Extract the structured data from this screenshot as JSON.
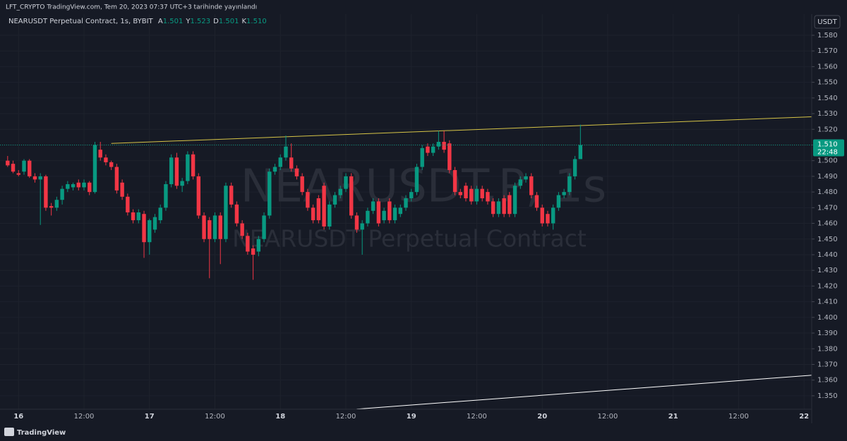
{
  "chart_data": {
    "type": "candlestick",
    "header": "LFT_CRYPTO TradingView.com, Tem 20, 2023 07:37 UTC+3 tarihinde yayınlandı",
    "symbol": "NEARUSDT Perpetual Contract, 1s, BYBIT",
    "ohlc_legend": [
      {
        "label": "A",
        "value": "1.501"
      },
      {
        "label": "Y",
        "value": "1.523"
      },
      {
        "label": "D",
        "value": "1.501"
      },
      {
        "label": "K",
        "value": "1.510"
      }
    ],
    "watermark": "NEARUSDT.P, 1s",
    "watermark_subtitle": "NEARUSDT Perpetual Contract",
    "currency": "USDT",
    "footer": "TradingView",
    "up_color": "#089981",
    "down_color": "#f23645",
    "grid": true,
    "x": [
      -2,
      -1,
      0,
      1,
      2,
      3,
      4,
      5,
      6,
      7,
      8,
      9,
      10,
      11,
      12,
      13,
      14,
      15,
      16,
      17,
      18,
      19,
      20,
      21,
      22,
      23,
      24,
      25,
      26,
      27,
      28,
      29,
      30,
      31,
      32,
      33,
      34,
      35,
      36,
      37,
      38,
      39,
      40,
      41,
      42,
      43,
      44,
      45,
      46,
      47,
      48,
      49,
      50,
      51,
      52,
      53,
      54,
      55,
      56,
      57,
      58,
      59,
      60,
      61,
      62,
      63,
      64,
      65,
      66,
      67,
      68,
      69,
      70,
      71,
      72,
      73,
      74,
      75,
      76,
      77,
      78,
      79,
      80,
      81,
      82,
      83,
      84,
      85,
      86,
      87,
      88,
      89,
      90,
      91,
      92,
      93,
      94,
      95,
      96,
      97,
      98,
      99,
      100,
      101,
      102,
      103
    ],
    "ohlc": [
      [
        1.5,
        1.503,
        1.496,
        1.497
      ],
      [
        1.498,
        1.5,
        1.492,
        1.493
      ],
      [
        1.492,
        1.494,
        1.49,
        1.491
      ],
      [
        1.493,
        1.501,
        1.491,
        1.5
      ],
      [
        1.5,
        1.501,
        1.489,
        1.49
      ],
      [
        1.49,
        1.492,
        1.486,
        1.488
      ],
      [
        1.488,
        1.492,
        1.459,
        1.49
      ],
      [
        1.49,
        1.491,
        1.468,
        1.47
      ],
      [
        1.471,
        1.473,
        1.465,
        1.47
      ],
      [
        1.47,
        1.477,
        1.468,
        1.475
      ],
      [
        1.475,
        1.484,
        1.472,
        1.482
      ],
      [
        1.482,
        1.487,
        1.48,
        1.485
      ],
      [
        1.483,
        1.486,
        1.481,
        1.485
      ],
      [
        1.486,
        1.488,
        1.481,
        1.483
      ],
      [
        1.483,
        1.488,
        1.481,
        1.486
      ],
      [
        1.486,
        1.487,
        1.478,
        1.48
      ],
      [
        1.48,
        1.512,
        1.479,
        1.51
      ],
      [
        1.507,
        1.512,
        1.5,
        1.502
      ],
      [
        1.502,
        1.504,
        1.497,
        1.499
      ],
      [
        1.499,
        1.5,
        1.494,
        1.496
      ],
      [
        1.496,
        1.498,
        1.479,
        1.481
      ],
      [
        1.486,
        1.488,
        1.475,
        1.477
      ],
      [
        1.477,
        1.479,
        1.465,
        1.467
      ],
      [
        1.467,
        1.469,
        1.46,
        1.462
      ],
      [
        1.462,
        1.469,
        1.46,
        1.467
      ],
      [
        1.466,
        1.468,
        1.438,
        1.448
      ],
      [
        1.448,
        1.463,
        1.44,
        1.462
      ],
      [
        1.456,
        1.466,
        1.454,
        1.464
      ],
      [
        1.462,
        1.472,
        1.46,
        1.47
      ],
      [
        1.47,
        1.487,
        1.468,
        1.485
      ],
      [
        1.485,
        1.504,
        1.483,
        1.502
      ],
      [
        1.502,
        1.505,
        1.482,
        1.484
      ],
      [
        1.484,
        1.489,
        1.48,
        1.487
      ],
      [
        1.487,
        1.506,
        1.485,
        1.504
      ],
      [
        1.504,
        1.506,
        1.488,
        1.49
      ],
      [
        1.49,
        1.492,
        1.463,
        1.465
      ],
      [
        1.465,
        1.467,
        1.448,
        1.45
      ],
      [
        1.462,
        1.464,
        1.425,
        1.45
      ],
      [
        1.45,
        1.467,
        1.448,
        1.465
      ],
      [
        1.465,
        1.467,
        1.434,
        1.45
      ],
      [
        1.45,
        1.486,
        1.448,
        1.484
      ],
      [
        1.484,
        1.486,
        1.47,
        1.472
      ],
      [
        1.472,
        1.474,
        1.458,
        1.46
      ],
      [
        1.46,
        1.462,
        1.45,
        1.452
      ],
      [
        1.452,
        1.454,
        1.44,
        1.442
      ],
      [
        1.444,
        1.446,
        1.424,
        1.44
      ],
      [
        1.442,
        1.452,
        1.439,
        1.45
      ],
      [
        1.45,
        1.467,
        1.448,
        1.465
      ],
      [
        1.465,
        1.495,
        1.463,
        1.493
      ],
      [
        1.493,
        1.498,
        1.491,
        1.496
      ],
      [
        1.496,
        1.504,
        1.494,
        1.502
      ],
      [
        1.502,
        1.516,
        1.5,
        1.509
      ],
      [
        1.502,
        1.511,
        1.493,
        1.495
      ],
      [
        1.495,
        1.497,
        1.488,
        1.49
      ],
      [
        1.49,
        1.492,
        1.478,
        1.48
      ],
      [
        1.48,
        1.482,
        1.468,
        1.47
      ],
      [
        1.47,
        1.472,
        1.46,
        1.462
      ],
      [
        1.476,
        1.478,
        1.46,
        1.462
      ],
      [
        1.484,
        1.486,
        1.456,
        1.458
      ],
      [
        1.458,
        1.474,
        1.456,
        1.472
      ],
      [
        1.472,
        1.48,
        1.47,
        1.478
      ],
      [
        1.478,
        1.484,
        1.476,
        1.482
      ],
      [
        1.482,
        1.492,
        1.48,
        1.49
      ],
      [
        1.49,
        1.492,
        1.463,
        1.465
      ],
      [
        1.465,
        1.467,
        1.454,
        1.456
      ],
      [
        1.456,
        1.462,
        1.44,
        1.46
      ],
      [
        1.46,
        1.47,
        1.458,
        1.468
      ],
      [
        1.468,
        1.476,
        1.466,
        1.474
      ],
      [
        1.474,
        1.476,
        1.458,
        1.46
      ],
      [
        1.462,
        1.47,
        1.46,
        1.468
      ],
      [
        1.474,
        1.476,
        1.46,
        1.462
      ],
      [
        1.462,
        1.472,
        1.46,
        1.47
      ],
      [
        1.466,
        1.472,
        1.464,
        1.47
      ],
      [
        1.47,
        1.478,
        1.468,
        1.476
      ],
      [
        1.476,
        1.482,
        1.474,
        1.48
      ],
      [
        1.48,
        1.498,
        1.478,
        1.496
      ],
      [
        1.496,
        1.51,
        1.494,
        1.508
      ],
      [
        1.509,
        1.511,
        1.503,
        1.505
      ],
      [
        1.505,
        1.511,
        1.503,
        1.509
      ],
      [
        1.509,
        1.519,
        1.507,
        1.512
      ],
      [
        1.512,
        1.519,
        1.505,
        1.507
      ],
      [
        1.511,
        1.513,
        1.492,
        1.494
      ],
      [
        1.494,
        1.496,
        1.478,
        1.48
      ],
      [
        1.48,
        1.482,
        1.476,
        1.478
      ],
      [
        1.484,
        1.486,
        1.474,
        1.476
      ],
      [
        1.482,
        1.484,
        1.472,
        1.474
      ],
      [
        1.474,
        1.484,
        1.472,
        1.482
      ],
      [
        1.482,
        1.484,
        1.474,
        1.476
      ],
      [
        1.48,
        1.482,
        1.472,
        1.474
      ],
      [
        1.474,
        1.476,
        1.464,
        1.466
      ],
      [
        1.466,
        1.476,
        1.464,
        1.474
      ],
      [
        1.476,
        1.478,
        1.464,
        1.466
      ],
      [
        1.478,
        1.48,
        1.464,
        1.466
      ],
      [
        1.466,
        1.486,
        1.464,
        1.484
      ],
      [
        1.484,
        1.49,
        1.482,
        1.488
      ],
      [
        1.488,
        1.492,
        1.486,
        1.49
      ],
      [
        1.49,
        1.492,
        1.476,
        1.478
      ],
      [
        1.478,
        1.48,
        1.468,
        1.47
      ],
      [
        1.47,
        1.472,
        1.458,
        1.46
      ],
      [
        1.466,
        1.468,
        1.458,
        1.46
      ],
      [
        1.46,
        1.472,
        1.456,
        1.47
      ],
      [
        1.47,
        1.48,
        1.468,
        1.478
      ],
      [
        1.478,
        1.482,
        1.476,
        1.48
      ],
      [
        1.48,
        1.492,
        1.478,
        1.49
      ],
      [
        1.49,
        1.503,
        1.488,
        1.501
      ],
      [
        1.501,
        1.523,
        1.501,
        1.51
      ]
    ],
    "xlim": [
      -3.4,
      145.4
    ],
    "ylim": [
      1.3414,
      1.5935
    ],
    "xticks": [
      {
        "value": 0,
        "label": "16"
      },
      {
        "value": 12,
        "label": "12:00"
      },
      {
        "value": 24,
        "label": "17"
      },
      {
        "value": 36,
        "label": "12:00"
      },
      {
        "value": 48,
        "label": "18"
      },
      {
        "value": 60,
        "label": "12:00"
      },
      {
        "value": 72,
        "label": "19"
      },
      {
        "value": 84,
        "label": "12:00"
      },
      {
        "value": 96,
        "label": "20"
      },
      {
        "value": 108,
        "label": "12:00"
      },
      {
        "value": 120,
        "label": "21"
      },
      {
        "value": 132,
        "label": "12:00"
      },
      {
        "value": 144,
        "label": "22"
      }
    ],
    "yticks": [
      {
        "value": 1.35,
        "label": "1.350"
      },
      {
        "value": 1.36,
        "label": "1.360"
      },
      {
        "value": 1.37,
        "label": "1.370"
      },
      {
        "value": 1.38,
        "label": "1.380"
      },
      {
        "value": 1.39,
        "label": "1.390"
      },
      {
        "value": 1.4,
        "label": "1.400"
      },
      {
        "value": 1.41,
        "label": "1.410"
      },
      {
        "value": 1.42,
        "label": "1.420"
      },
      {
        "value": 1.43,
        "label": "1.430"
      },
      {
        "value": 1.44,
        "label": "1.440"
      },
      {
        "value": 1.45,
        "label": "1.450"
      },
      {
        "value": 1.46,
        "label": "1.460"
      },
      {
        "value": 1.47,
        "label": "1.470"
      },
      {
        "value": 1.48,
        "label": "1.480"
      },
      {
        "value": 1.49,
        "label": "1.490"
      },
      {
        "value": 1.5,
        "label": "1.500"
      },
      {
        "value": 1.51,
        "label": "1.510"
      },
      {
        "value": 1.52,
        "label": "1.520"
      },
      {
        "value": 1.53,
        "label": "1.530"
      },
      {
        "value": 1.54,
        "label": "1.540"
      },
      {
        "value": 1.55,
        "label": "1.550"
      },
      {
        "value": 1.56,
        "label": "1.560"
      },
      {
        "value": 1.57,
        "label": "1.570"
      },
      {
        "value": 1.58,
        "label": "1.580"
      }
    ],
    "last_price": {
      "value": 1.51,
      "label": "1.510"
    },
    "countdown": "22:48",
    "trend_lines": [
      {
        "color": "#d6c447",
        "points": [
          [
            17,
            1.511
          ],
          [
            145.4,
            1.528
          ]
        ]
      },
      {
        "color": "#ffffff",
        "points": [
          [
            62,
            1.3415
          ],
          [
            145.4,
            1.3631
          ]
        ]
      }
    ]
  }
}
